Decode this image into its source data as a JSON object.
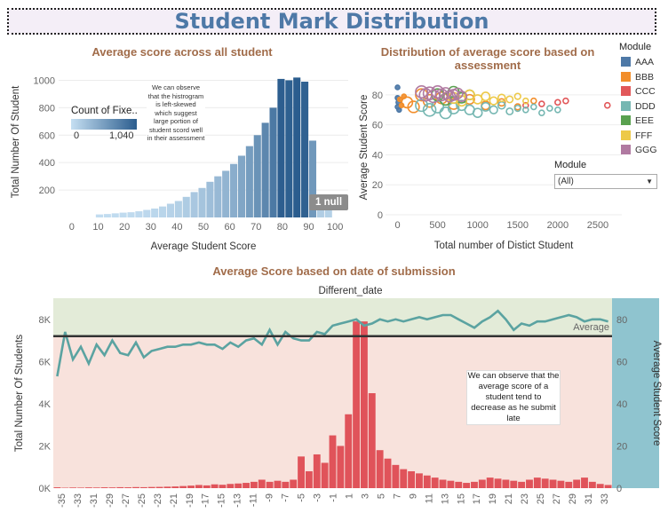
{
  "title": "Student Mark Distribution",
  "colors": {
    "title": "#4e79a7",
    "section_title": "#a16c4a",
    "avg_line": "#5ba3a1",
    "bar_red": "#e0535a",
    "upper_band": "#e3ebd8",
    "lower_band": "#f8e2dc",
    "right_axis_band": "#8fc4cf",
    "hist_low": "#c5dff2",
    "hist_high": "#2b5d8e"
  },
  "histogram": {
    "section_title": "Average score across all student",
    "legend_title": "Count of Fixe..",
    "legend_min": "0",
    "legend_max": "1,040",
    "note": "We can observe that the histrogram is left-skewed which suggest large portion of student scord well in their assessment",
    "null_badge": "1 null",
    "chart_data": {
      "type": "bar",
      "title": "Average score across all student",
      "xlabel": "Average Student Score",
      "ylabel": "Total Number Of Student",
      "xlim": [
        -5,
        105
      ],
      "ylim": [
        0,
        1100
      ],
      "x_ticks": [
        "0",
        "10",
        "20",
        "30",
        "40",
        "50",
        "60",
        "70",
        "80",
        "90",
        "100"
      ],
      "y_ticks": [
        "200",
        "400",
        "600",
        "800",
        "1000"
      ],
      "bin_width": 3,
      "bins": [
        9,
        12,
        15,
        18,
        21,
        24,
        27,
        30,
        33,
        36,
        39,
        42,
        45,
        48,
        51,
        54,
        57,
        60,
        63,
        66,
        69,
        72,
        75,
        78,
        81,
        84,
        87,
        90,
        93,
        96
      ],
      "values": [
        22,
        25,
        30,
        35,
        38,
        45,
        55,
        65,
        80,
        100,
        120,
        150,
        185,
        215,
        260,
        300,
        340,
        390,
        450,
        520,
        600,
        690,
        800,
        1010,
        1000,
        1020,
        990,
        560,
        140,
        110
      ]
    }
  },
  "scatter": {
    "section_title": "Distribution of average score based on assessment",
    "legend_title": "Module",
    "modules": [
      {
        "name": "AAA",
        "color": "#4e79a7"
      },
      {
        "name": "BBB",
        "color": "#f28e2b"
      },
      {
        "name": "CCC",
        "color": "#e15759"
      },
      {
        "name": "DDD",
        "color": "#76b7b2"
      },
      {
        "name": "EEE",
        "color": "#59a14f"
      },
      {
        "name": "FFF",
        "color": "#edc948"
      },
      {
        "name": "GGG",
        "color": "#b07aa1"
      }
    ],
    "filter_label": "Module",
    "filter_value": "(All)",
    "chart_data": {
      "type": "scatter",
      "title": "Distribution of average score based on assessment",
      "xlabel": "Total number of Distict Student",
      "ylabel": "Average Student Score",
      "xlim": [
        -150,
        2800
      ],
      "ylim": [
        0,
        90
      ],
      "x_ticks": [
        "0",
        "500",
        "1000",
        "1500",
        "2000",
        "2500"
      ],
      "y_ticks": [
        "0",
        "20",
        "40",
        "60",
        "80"
      ],
      "series": [
        {
          "name": "AAA",
          "points": [
            [
              0,
              85
            ],
            [
              0,
              72
            ],
            [
              20,
              70
            ],
            [
              0,
              78
            ],
            [
              10,
              75
            ]
          ]
        },
        {
          "name": "BBB",
          "points": [
            [
              30,
              77
            ],
            [
              50,
              73
            ],
            [
              80,
              79
            ],
            [
              120,
              75
            ],
            [
              200,
              72
            ],
            [
              300,
              80
            ],
            [
              400,
              76
            ],
            [
              550,
              78
            ],
            [
              700,
              74
            ],
            [
              900,
              77
            ],
            [
              1100,
              73
            ],
            [
              1300,
              75
            ],
            [
              1500,
              72
            ],
            [
              1700,
              76
            ]
          ]
        },
        {
          "name": "CCC",
          "points": [
            [
              1600,
              73
            ],
            [
              1800,
              74
            ],
            [
              2000,
              75
            ],
            [
              2100,
              76
            ],
            [
              2620,
              73
            ]
          ]
        },
        {
          "name": "DDD",
          "points": [
            [
              300,
              73
            ],
            [
              400,
              70
            ],
            [
              500,
              72
            ],
            [
              600,
              68
            ],
            [
              700,
              71
            ],
            [
              800,
              73
            ],
            [
              900,
              70
            ],
            [
              1000,
              68
            ],
            [
              1100,
              72
            ],
            [
              1200,
              70
            ],
            [
              1300,
              73
            ],
            [
              1400,
              69
            ],
            [
              1500,
              71
            ],
            [
              1600,
              70
            ],
            [
              1700,
              72
            ],
            [
              1800,
              68
            ],
            [
              1900,
              71
            ],
            [
              2000,
              70
            ]
          ]
        },
        {
          "name": "EEE",
          "points": [
            [
              500,
              80
            ],
            [
              600,
              77
            ],
            [
              700,
              82
            ],
            [
              800,
              78
            ],
            [
              900,
              80
            ]
          ]
        },
        {
          "name": "FFF",
          "points": [
            [
              700,
              78
            ],
            [
              800,
              76
            ],
            [
              900,
              80
            ],
            [
              1000,
              77
            ],
            [
              1100,
              79
            ],
            [
              1200,
              76
            ],
            [
              1300,
              78
            ],
            [
              1400,
              77
            ],
            [
              1500,
              79
            ],
            [
              1600,
              76
            ]
          ]
        },
        {
          "name": "GGG",
          "points": [
            [
              300,
              82
            ],
            [
              350,
              80
            ],
            [
              400,
              81
            ],
            [
              450,
              79
            ],
            [
              500,
              82
            ],
            [
              550,
              80
            ],
            [
              600,
              81
            ],
            [
              650,
              79
            ],
            [
              700,
              80
            ],
            [
              750,
              81
            ],
            [
              800,
              79
            ]
          ]
        }
      ]
    }
  },
  "timeline": {
    "section_title": "Average Score based on date of submission",
    "header": "Different_date",
    "reference_label": "Average",
    "note": "We can observe that the average score of a student tend to decrease as he submit late",
    "chart_data": {
      "type": "bar",
      "title": "Average Score based on date of submission",
      "xlabel": "Different_date",
      "ylabel": "Total Number Of Students",
      "y2label": "Average Student Score",
      "ylim": [
        0,
        9000
      ],
      "y2lim": [
        0,
        90
      ],
      "y_ticks": [
        "0K",
        "2K",
        "4K",
        "6K",
        "8K"
      ],
      "y2_ticks": [
        "0",
        "20",
        "40",
        "60",
        "80"
      ],
      "x_tick_labels": [
        "-35",
        "-33",
        "-31",
        "-29",
        "-27",
        "-25",
        "-23",
        "-21",
        "-19",
        "-17",
        "-15",
        "-13",
        "-11",
        "-9",
        "-7",
        "-5",
        "-3",
        "-1",
        "1",
        "3",
        "5",
        "7",
        "9",
        "11",
        "13",
        "15",
        "17",
        "19",
        "21",
        "23",
        "25",
        "27",
        "29",
        "31",
        "33"
      ],
      "x_from": -36,
      "x_to": 34,
      "counts": [
        40,
        20,
        30,
        25,
        35,
        30,
        40,
        35,
        45,
        40,
        50,
        45,
        55,
        60,
        70,
        80,
        100,
        120,
        150,
        130,
        180,
        160,
        200,
        220,
        250,
        300,
        400,
        300,
        350,
        300,
        400,
        1500,
        800,
        1600,
        1200,
        2500,
        2000,
        3500,
        7900,
        7900,
        4500,
        1800,
        1400,
        1100,
        900,
        800,
        700,
        600,
        500,
        400,
        350,
        300,
        250,
        300,
        400,
        500,
        450,
        400,
        350,
        300,
        400,
        500,
        450,
        400,
        350,
        300,
        400,
        500,
        300,
        200,
        150
      ],
      "avg_scores": [
        53,
        74,
        61,
        67,
        59,
        68,
        63,
        70,
        64,
        63,
        69,
        62,
        65,
        66,
        67,
        67,
        68,
        68,
        69,
        68,
        68,
        66,
        69,
        67,
        70,
        71,
        68,
        75,
        68,
        74,
        71,
        70,
        70,
        74,
        73,
        77,
        78,
        79,
        80,
        77,
        78,
        80,
        79,
        80,
        79,
        80,
        81,
        80,
        81,
        82,
        82,
        80,
        78,
        76,
        79,
        81,
        84,
        80,
        75,
        78,
        77,
        79,
        79,
        80,
        81,
        82,
        81,
        79,
        80,
        80,
        79
      ],
      "average_line": 72
    }
  }
}
